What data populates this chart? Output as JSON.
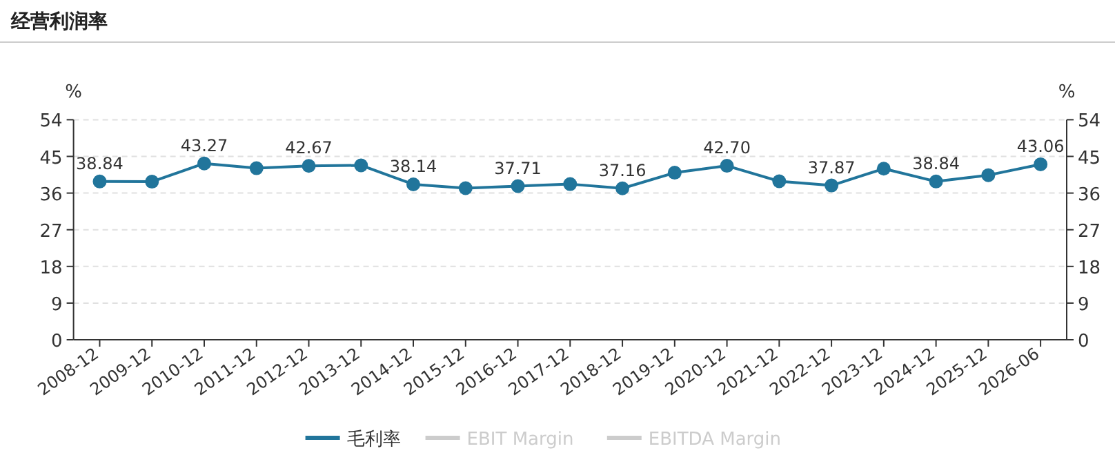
{
  "chart_data": {
    "type": "line",
    "title": "经营利润率",
    "ylabel": "%",
    "y2label": "%",
    "categories": [
      "2008-12",
      "2009-12",
      "2010-12",
      "2011-12",
      "2012-12",
      "2013-12",
      "2014-12",
      "2015-12",
      "2016-12",
      "2017-12",
      "2018-12",
      "2019-12",
      "2020-12",
      "2021-12",
      "2022-12",
      "2023-12",
      "2024-12",
      "2025-12",
      "2026-06"
    ],
    "series": [
      {
        "name": "毛利率",
        "color": "#21759b",
        "values": [
          38.84,
          38.8,
          43.27,
          42.1,
          42.67,
          42.8,
          38.14,
          37.2,
          37.71,
          38.2,
          37.16,
          41.0,
          42.7,
          38.9,
          37.87,
          42.0,
          38.84,
          40.4,
          43.06
        ],
        "value_labels": [
          "38.84",
          null,
          "43.27",
          null,
          "42.67",
          null,
          "38.14",
          null,
          "37.71",
          null,
          "37.16",
          null,
          "42.70",
          null,
          "37.87",
          null,
          "38.84",
          null,
          "43.06"
        ]
      },
      {
        "name": "EBIT Margin",
        "color": "#cccccc",
        "values": [
          null,
          null,
          null,
          null,
          null,
          null,
          null,
          null,
          null,
          null,
          null,
          null,
          null,
          null,
          null,
          null,
          null,
          null,
          null
        ]
      },
      {
        "name": "EBITDA Margin",
        "color": "#cccccc",
        "values": [
          null,
          null,
          null,
          null,
          null,
          null,
          null,
          null,
          null,
          null,
          null,
          null,
          null,
          null,
          null,
          null,
          null,
          null,
          null
        ]
      }
    ],
    "ylim": [
      0,
      54
    ],
    "yticks": [
      0,
      9,
      18,
      27,
      36,
      45,
      54
    ],
    "y2lim": [
      0,
      54
    ],
    "y2ticks": [
      0,
      9,
      18,
      27,
      36,
      45,
      54
    ],
    "grid": "y",
    "legend": "bottom",
    "marker": "circle",
    "line_style": "solid"
  }
}
